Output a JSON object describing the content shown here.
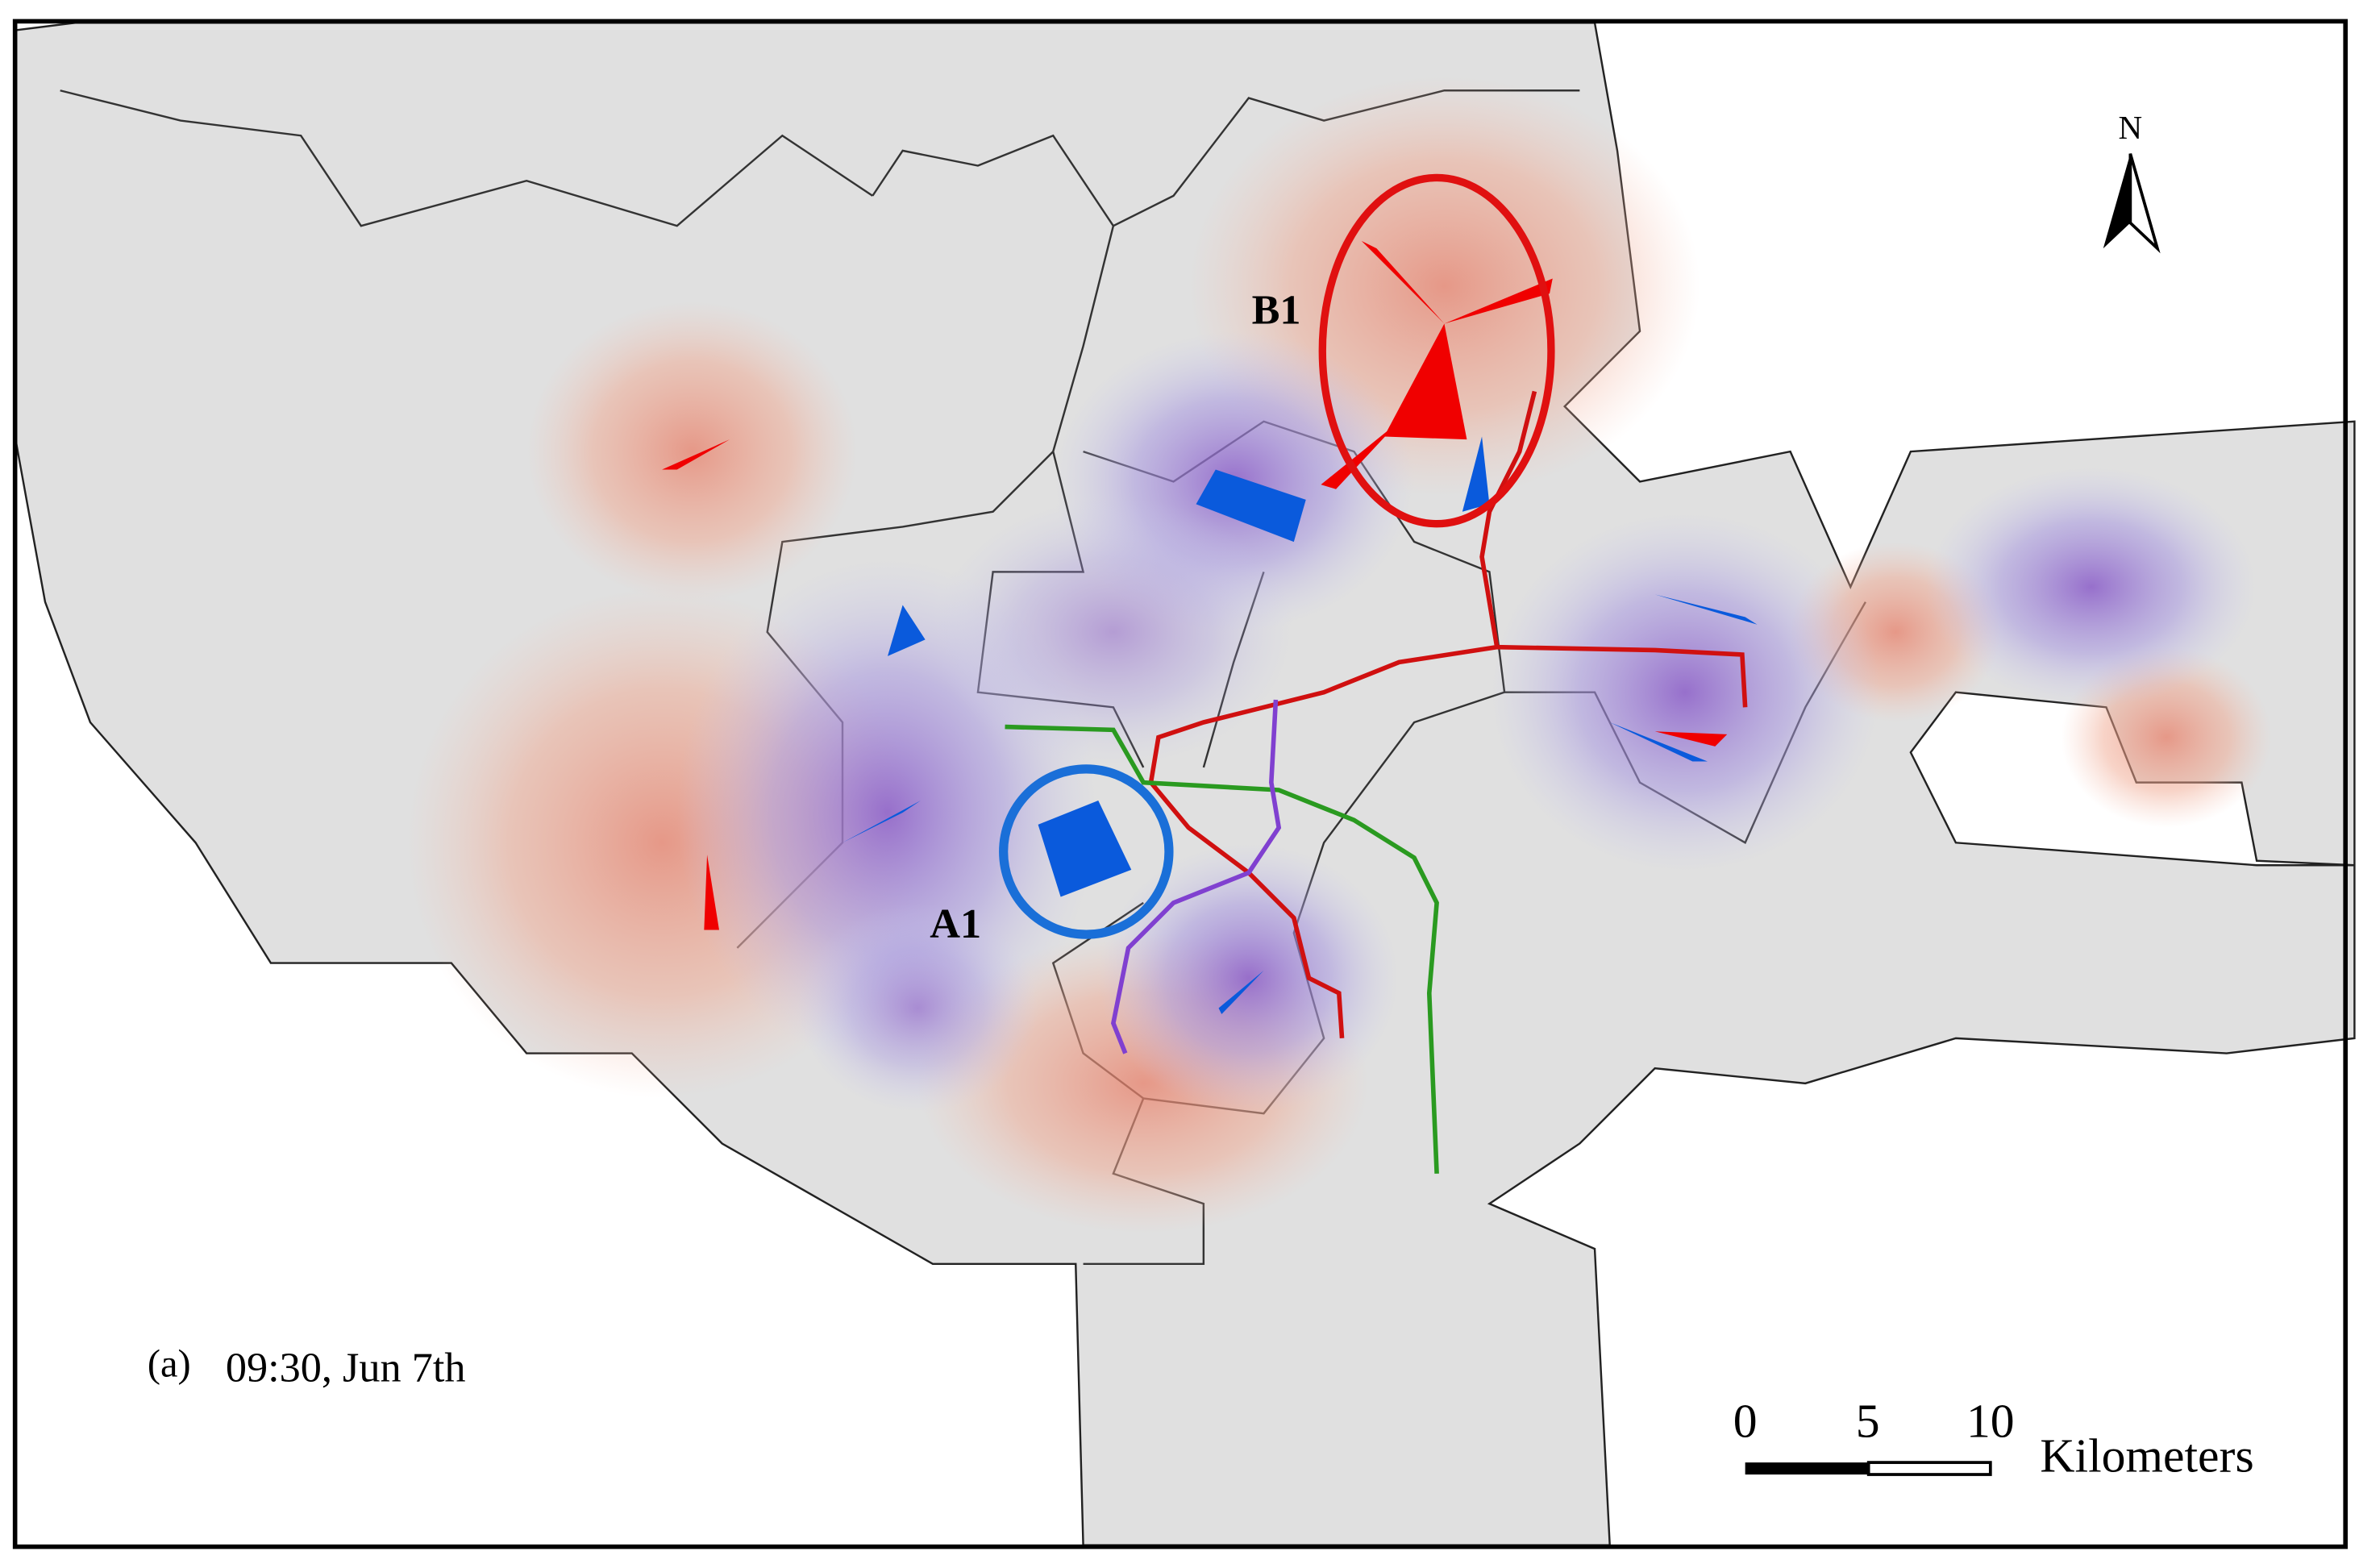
{
  "north_arrow": {
    "label": "N"
  },
  "annotations": [
    {
      "label": "B1"
    },
    {
      "label": "A1"
    }
  ],
  "caption": {
    "panel": "(a)",
    "time": "09:30, Jun 7th"
  },
  "scale_bar": {
    "ticks": [
      0,
      5,
      10
    ],
    "unit": "Kilometers"
  }
}
